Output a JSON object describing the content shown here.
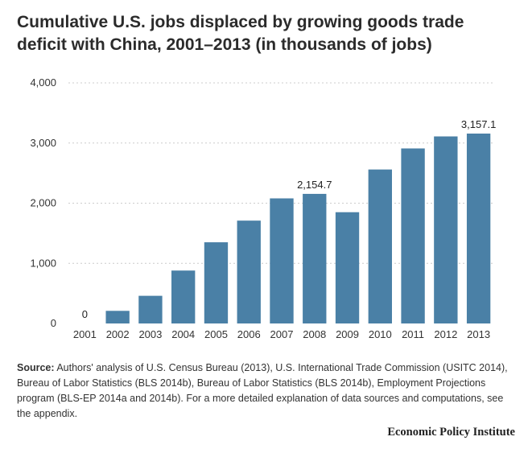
{
  "title": "Cumulative U.S. jobs displaced by growing goods trade deficit with China, 2001–2013 (in thousands of jobs)",
  "source": {
    "label": "Source:",
    "text": "Authors' analysis of U.S. Census Bureau (2013), U.S. International Trade Commission (USITC 2014), Bureau of Labor Statistics (BLS 2014b), Bureau of Labor Statistics (BLS 2014b), Employment Projections program (BLS-EP 2014a and 2014b).  For a more detailed explanation of data sources and computations, see the appendix."
  },
  "brand": "Economic Policy Institute",
  "chart_data": {
    "type": "bar",
    "title": "Cumulative U.S. jobs displaced by growing goods trade deficit with China, 2001–2013 (in thousands of jobs)",
    "xlabel": "",
    "ylabel": "",
    "categories": [
      "2001",
      "2002",
      "2003",
      "2004",
      "2005",
      "2006",
      "2007",
      "2008",
      "2009",
      "2010",
      "2011",
      "2012",
      "2013"
    ],
    "values": [
      0,
      210,
      460,
      880,
      1350,
      1710,
      2080,
      2154.7,
      1850,
      2560,
      2910,
      3110,
      3157.1
    ],
    "ylim": [
      0,
      4000
    ],
    "yticks": [
      0,
      1000,
      2000,
      3000,
      4000
    ],
    "ytick_labels": [
      "0",
      "1,000",
      "2,000",
      "3,000",
      "4,000"
    ],
    "data_labels": [
      {
        "category": "2001",
        "text": "0"
      },
      {
        "category": "2008",
        "text": "2,154.7"
      },
      {
        "category": "2013",
        "text": "3,157.1"
      }
    ],
    "grid": true,
    "bar_color": "#4a80a6",
    "grid_color": "#cccccc"
  }
}
